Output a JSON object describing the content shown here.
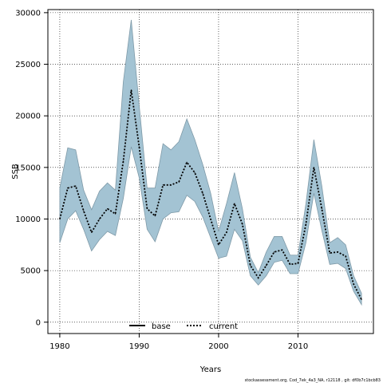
{
  "chart_data": {
    "type": "area",
    "title": "",
    "xlabel": "Years",
    "ylabel": "SSB",
    "xlim": [
      1978.5,
      2019.5
    ],
    "ylim": [
      -1100,
      30300
    ],
    "xticks": [
      1980,
      1990,
      2000,
      2010
    ],
    "yticks": [
      0,
      5000,
      10000,
      15000,
      20000,
      25000,
      30000
    ],
    "grid": true,
    "legend_position": "bottom",
    "legend": [
      {
        "name": "base",
        "style": "solid"
      },
      {
        "name": "current",
        "style": "dotted"
      }
    ],
    "x": [
      1980,
      1981,
      1982,
      1983,
      1984,
      1985,
      1986,
      1987,
      1988,
      1989,
      1990,
      1991,
      1992,
      1993,
      1994,
      1995,
      1996,
      1997,
      1998,
      1999,
      2000,
      2001,
      2002,
      2003,
      2004,
      2005,
      2006,
      2007,
      2008,
      2009,
      2010,
      2011,
      2012,
      2013,
      2014,
      2015,
      2016,
      2017,
      2018
    ],
    "series": [
      {
        "name": "current",
        "style": "dotted",
        "values": [
          10000,
          13000,
          13200,
          10800,
          8700,
          10000,
          11000,
          10500,
          15600,
          22500,
          17000,
          11000,
          10300,
          13300,
          13300,
          13600,
          15500,
          14500,
          12500,
          10000,
          7500,
          8700,
          11500,
          9500,
          5500,
          4300,
          5500,
          6800,
          7000,
          5600,
          5700,
          9500,
          15000,
          11000,
          6700,
          6800,
          6400,
          3700,
          2200
        ]
      }
    ],
    "confidence_band": {
      "upper": [
        13000,
        16900,
        16700,
        12800,
        10900,
        12700,
        13500,
        12800,
        23300,
        29300,
        21000,
        13000,
        13000,
        17300,
        16700,
        17500,
        19700,
        17700,
        15300,
        12500,
        8800,
        11500,
        14500,
        11000,
        6300,
        4800,
        6800,
        8300,
        8300,
        6500,
        6500,
        11500,
        17700,
        13200,
        7700,
        8200,
        7500,
        4500,
        2800
      ],
      "lower": [
        7700,
        10000,
        10800,
        9000,
        6900,
        8000,
        8800,
        8400,
        12000,
        17000,
        14000,
        9000,
        7800,
        10000,
        10600,
        10700,
        12300,
        11700,
        10200,
        8200,
        6200,
        6400,
        9000,
        7900,
        4500,
        3600,
        4500,
        5800,
        6000,
        4700,
        4700,
        7700,
        12500,
        8900,
        5600,
        5700,
        5200,
        3000,
        1700
      ]
    },
    "colors": {
      "band_fill": "#a3c3d3",
      "band_edge": "#7f9aa8",
      "line": "#000000"
    }
  },
  "footnote": "stockassessment.org, Cod_7ek_4a3_NA, r12118 , git: df0b7c1bcb83"
}
